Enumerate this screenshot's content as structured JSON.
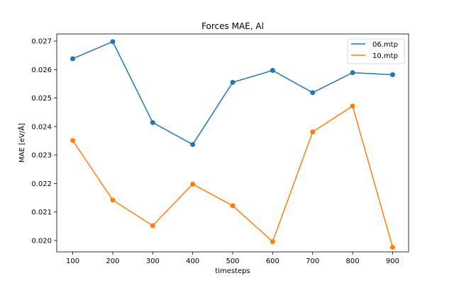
{
  "chart_data": {
    "type": "line",
    "title": "Forces MAE, Al",
    "xlabel": "timesteps",
    "ylabel": "MAE [eV/Å]",
    "x": [
      100,
      200,
      300,
      400,
      500,
      600,
      700,
      800,
      900
    ],
    "xticks": [
      "100",
      "200",
      "300",
      "400",
      "500",
      "600",
      "700",
      "800",
      "900"
    ],
    "yticks": [
      "0.020",
      "0.021",
      "0.022",
      "0.023",
      "0.024",
      "0.025",
      "0.026",
      "0.027"
    ],
    "ytick_values": [
      0.02,
      0.021,
      0.022,
      0.023,
      0.024,
      0.025,
      0.026,
      0.027
    ],
    "xlim": [
      60,
      940
    ],
    "ylim": [
      0.0196,
      0.02725
    ],
    "grid": false,
    "legend_position": "top-right",
    "series": [
      {
        "name": "06.mtp",
        "color": "#1f77b4",
        "values": [
          0.02638,
          0.02698,
          0.02414,
          0.02337,
          0.02555,
          0.02597,
          0.02519,
          0.02589,
          0.02582
        ]
      },
      {
        "name": "10.mtp",
        "color": "#ff7f0e",
        "values": [
          0.02351,
          0.02142,
          0.02052,
          0.02198,
          0.02122,
          0.01996,
          0.02381,
          0.02472,
          0.01976
        ]
      }
    ]
  }
}
